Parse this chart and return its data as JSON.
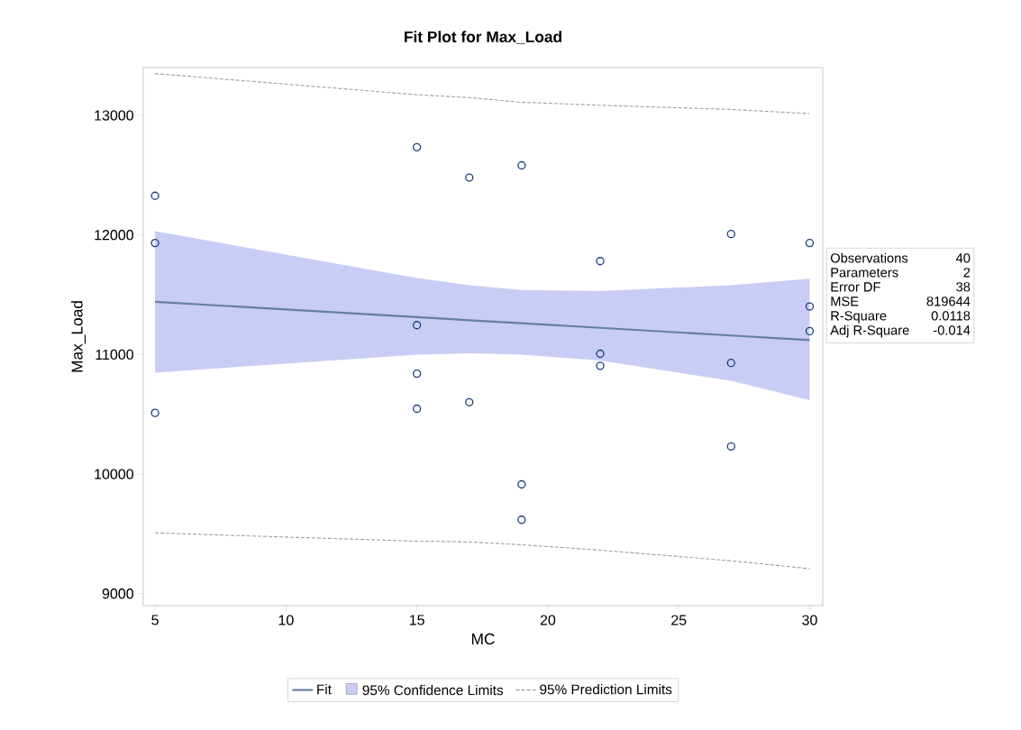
{
  "chart_data": {
    "type": "line",
    "title": "Fit Plot for Max_Load",
    "xlabel": "MC",
    "ylabel": "Max_Load",
    "xlim": [
      4.55,
      30.5
    ],
    "ylim": [
      8900,
      13400
    ],
    "xticks": [
      5,
      10,
      15,
      20,
      25,
      30
    ],
    "yticks": [
      9000,
      10000,
      11000,
      12000,
      13000
    ],
    "grid": false,
    "legend": "bottom",
    "annotations": [
      "Observations",
      "40",
      "Parameters",
      "2",
      "Error DF",
      "38",
      "MSE",
      "819644",
      "R-Square",
      "0.0118",
      "Adj R-Square",
      "-0.014",
      "95% Confidence Limits"
    ],
    "series": [
      {
        "name": "Fit",
        "color": "#667fa3",
        "line_style": "solid",
        "marker": "none",
        "x": [
          5,
          15,
          17,
          19,
          22,
          27,
          30
        ],
        "values": [
          11441,
          11313,
          11287,
          11262,
          11223,
          11159,
          11121
        ],
        "lower": [
          10849,
          11000,
          11010,
          11000,
          10950,
          10780,
          10619
        ],
        "upper": [
          12032,
          11640,
          11580,
          11540,
          11530,
          11580,
          11635
        ]
      },
      {
        "name": "95% Prediction Limits",
        "color": "#9a9aae",
        "line_style": "dashed",
        "marker": "none",
        "x": [
          5,
          15,
          17,
          19,
          22,
          27,
          30
        ],
        "values": [
          13350,
          13173,
          13149,
          13110,
          13085,
          13050,
          13015
        ]
      },
      {
        "color": "#9a9aae",
        "line_style": "dashed",
        "marker": "none",
        "x": [
          5,
          15,
          17,
          19,
          22,
          27,
          30
        ],
        "values": [
          9508,
          9439,
          9433,
          9409,
          9364,
          9275,
          9209
        ]
      },
      {
        "type": "scatter",
        "color": "#1c3f7a",
        "marker": "circle",
        "x": [
          5,
          5,
          5,
          15,
          15,
          15,
          15,
          17,
          17,
          19,
          19,
          19,
          22,
          22,
          22,
          27,
          27,
          27,
          30,
          30,
          30
        ],
        "values": [
          12328,
          11933,
          10512,
          12734,
          11246,
          10840,
          10547,
          12480,
          10601,
          12582,
          9914,
          9618,
          11781,
          11007,
          10906,
          12008,
          10930,
          10231,
          11933,
          11402,
          11196
        ]
      }
    ]
  }
}
